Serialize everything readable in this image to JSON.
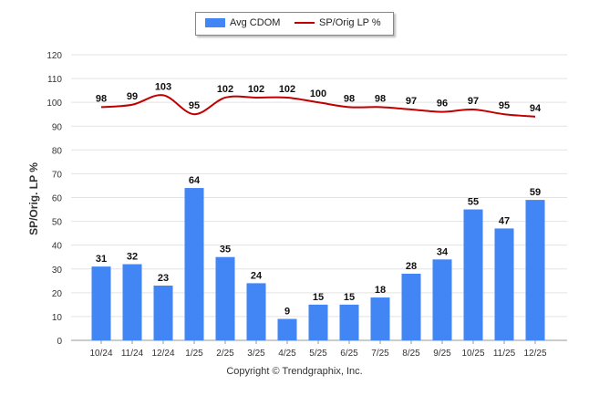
{
  "chart_data": {
    "type": "bar",
    "categories": [
      "10/24",
      "11/24",
      "12/24",
      "1/25",
      "2/25",
      "3/25",
      "4/25",
      "5/25",
      "6/25",
      "7/25",
      "8/25",
      "9/25",
      "10/25",
      "11/25",
      "12/25"
    ],
    "series": [
      {
        "name": "Avg CDOM",
        "kind": "bar",
        "color": "#4285f4",
        "values": [
          31,
          32,
          23,
          64,
          35,
          24,
          9,
          15,
          15,
          18,
          28,
          34,
          55,
          47,
          59
        ]
      },
      {
        "name": "SP/Orig LP %",
        "kind": "line",
        "color": "#c00000",
        "values": [
          98,
          99,
          103,
          95,
          102,
          102,
          102,
          100,
          98,
          98,
          97,
          96,
          97,
          95,
          94
        ]
      }
    ],
    "ylabel": "SP/Orig. LP %",
    "xlabel": "",
    "ylim": [
      0,
      120
    ],
    "yticks": [
      0,
      10,
      20,
      30,
      40,
      50,
      60,
      70,
      80,
      90,
      100,
      110,
      120
    ],
    "grid": true,
    "legend": "top-center"
  },
  "footer": "Copyright © Trendgraphix, Inc."
}
